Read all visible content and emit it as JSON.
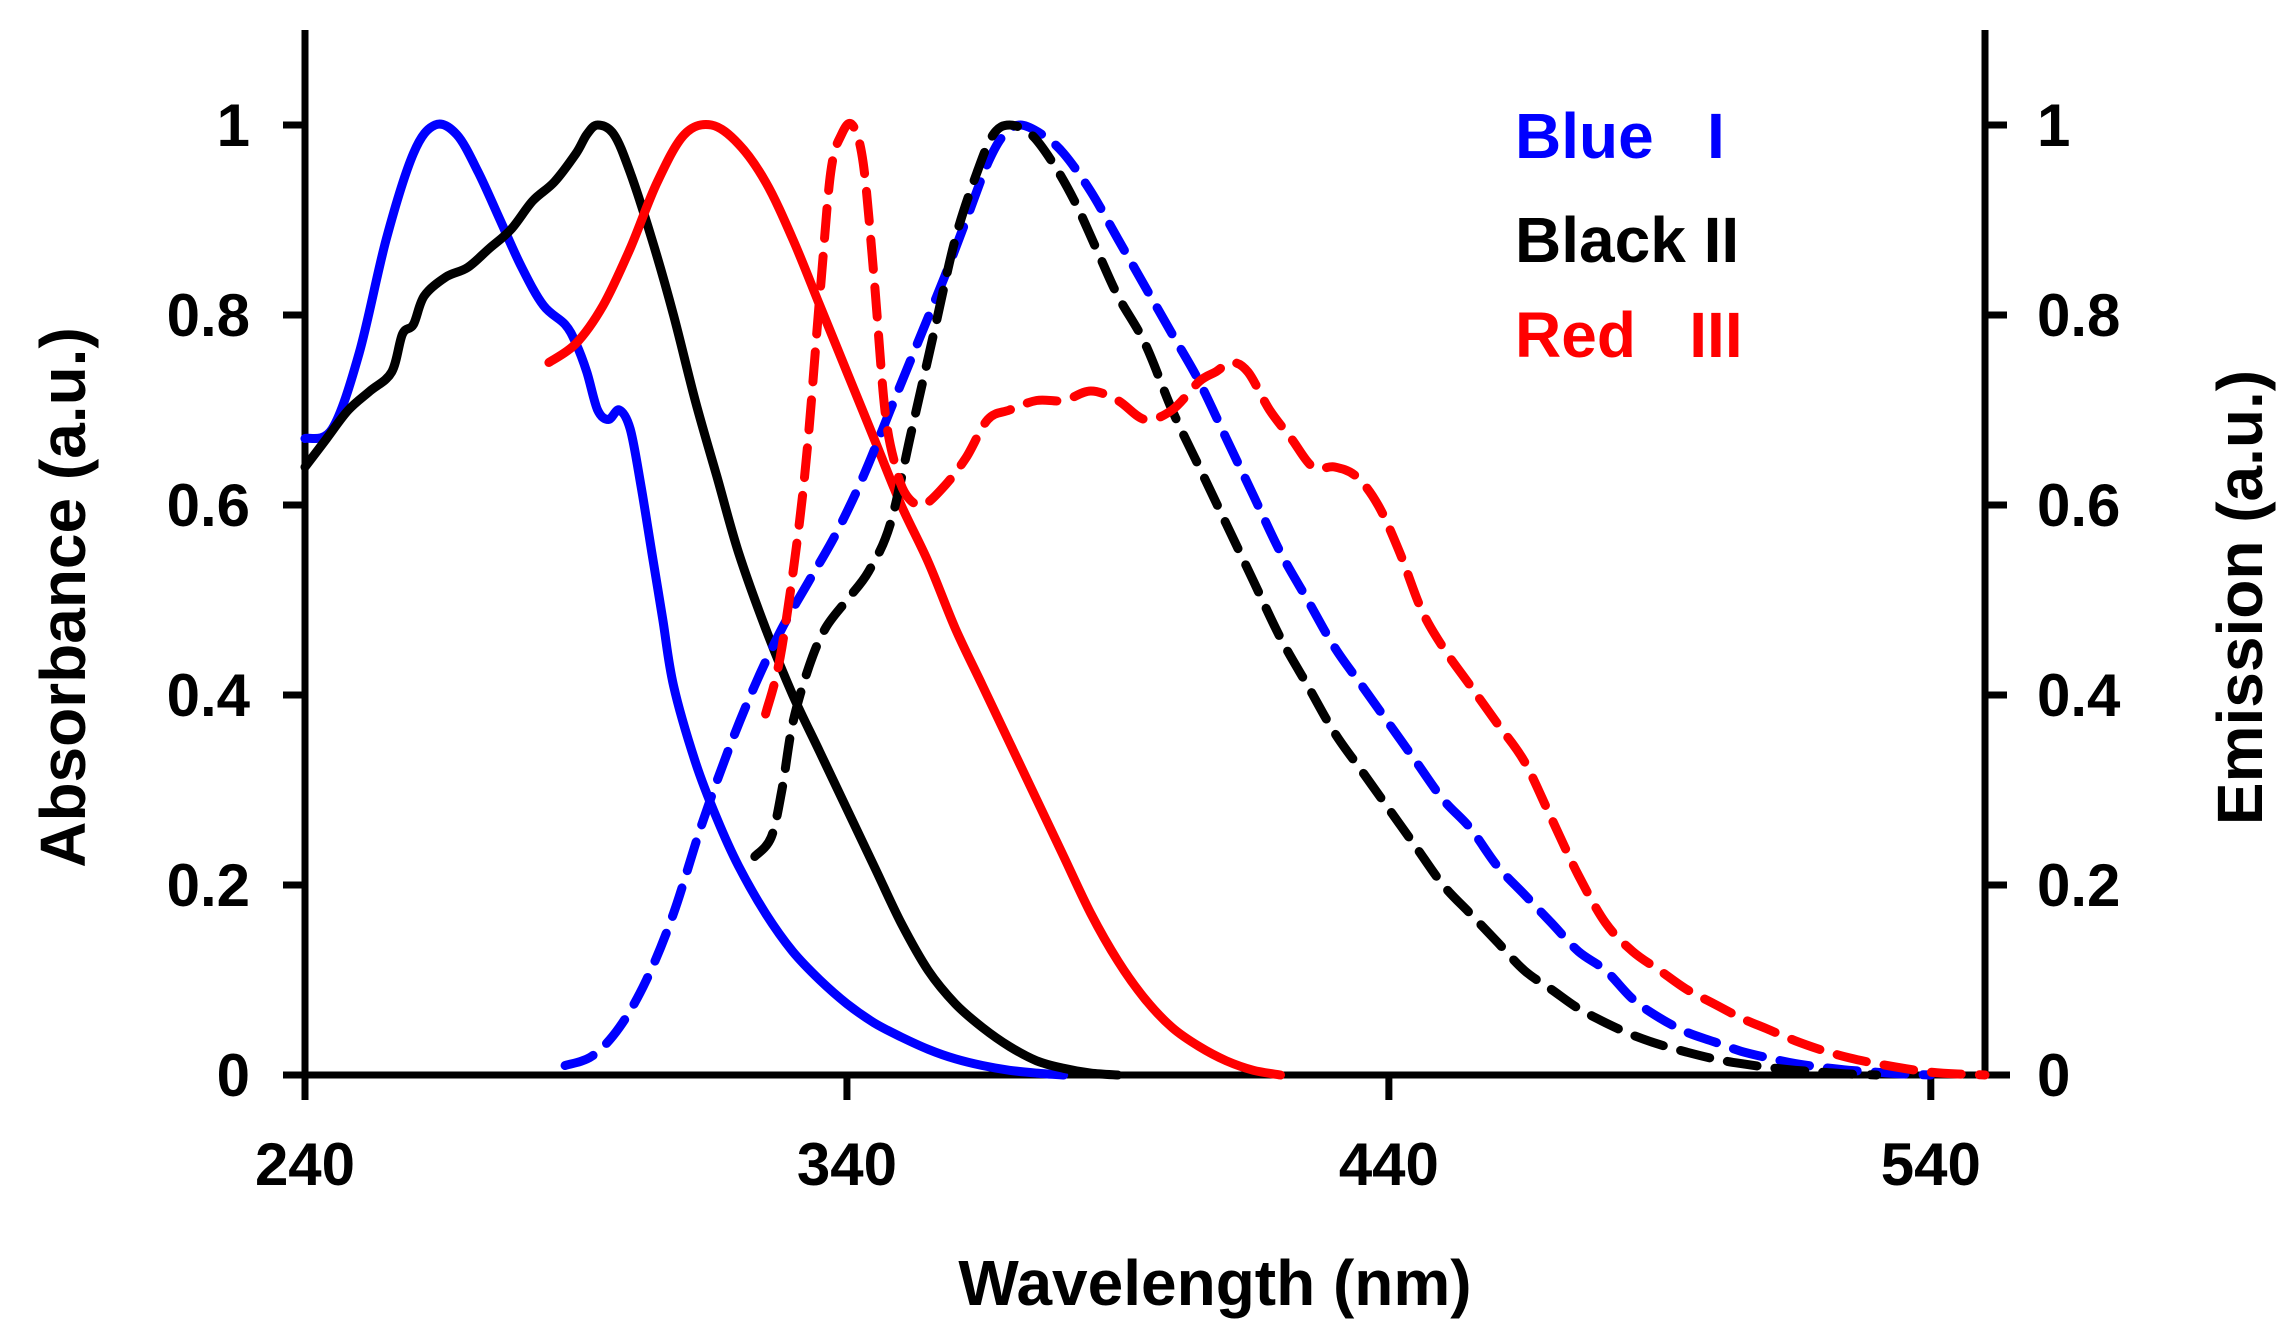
{
  "chart_data": {
    "type": "line",
    "title": "",
    "xlabel": "Wavelength (nm)",
    "ylabel": "Absorbance (a.u.)",
    "y2label": "Emission (a.u.)",
    "xlim": [
      240,
      550
    ],
    "ylim": [
      0,
      1.1
    ],
    "y2lim": [
      0,
      1.1
    ],
    "grid": false,
    "legend_position": "top-right",
    "xticks": [
      240,
      340,
      440,
      540
    ],
    "xtick_labels": [
      "240",
      "340",
      "440",
      "540"
    ],
    "yticks": [
      0,
      0.2,
      0.4,
      0.6,
      0.8,
      1
    ],
    "ytick_labels": [
      "0",
      "0.2",
      "0.4",
      "0.6",
      "0.8",
      "1"
    ],
    "y2tick_labels": [
      "0",
      "0.2",
      "0.4",
      "0.6",
      "0.8",
      "1"
    ],
    "legend": [
      {
        "label": "Blue   I",
        "color": "#0000ff"
      },
      {
        "label": "Black II",
        "color": "#000000"
      },
      {
        "label": "Red   III",
        "color": "#ff0000"
      }
    ],
    "series": [
      {
        "name": "Blue I absorbance",
        "color": "#0000ff",
        "dash": false,
        "axis": "left",
        "points": [
          [
            240,
            0.67
          ],
          [
            245,
            0.68
          ],
          [
            250,
            0.76
          ],
          [
            255,
            0.88
          ],
          [
            260,
            0.97
          ],
          [
            264,
            1.0
          ],
          [
            268,
            0.99
          ],
          [
            272,
            0.95
          ],
          [
            276,
            0.9
          ],
          [
            280,
            0.85
          ],
          [
            284,
            0.81
          ],
          [
            288,
            0.79
          ],
          [
            290,
            0.77
          ],
          [
            292,
            0.74
          ],
          [
            294,
            0.7
          ],
          [
            296,
            0.69
          ],
          [
            298,
            0.7
          ],
          [
            300,
            0.68
          ],
          [
            302,
            0.62
          ],
          [
            304,
            0.55
          ],
          [
            306,
            0.48
          ],
          [
            308,
            0.41
          ],
          [
            312,
            0.33
          ],
          [
            316,
            0.27
          ],
          [
            320,
            0.22
          ],
          [
            325,
            0.17
          ],
          [
            330,
            0.13
          ],
          [
            335,
            0.1
          ],
          [
            340,
            0.075
          ],
          [
            345,
            0.055
          ],
          [
            350,
            0.04
          ],
          [
            355,
            0.027
          ],
          [
            360,
            0.017
          ],
          [
            365,
            0.01
          ],
          [
            370,
            0.005
          ],
          [
            375,
            0.002
          ],
          [
            380,
            0.0
          ]
        ]
      },
      {
        "name": "Black II absorbance",
        "color": "#000000",
        "dash": false,
        "axis": "left",
        "points": [
          [
            240,
            0.64
          ],
          [
            244,
            0.67
          ],
          [
            248,
            0.7
          ],
          [
            252,
            0.72
          ],
          [
            256,
            0.74
          ],
          [
            258,
            0.78
          ],
          [
            260,
            0.79
          ],
          [
            262,
            0.82
          ],
          [
            266,
            0.84
          ],
          [
            270,
            0.85
          ],
          [
            274,
            0.87
          ],
          [
            278,
            0.89
          ],
          [
            282,
            0.92
          ],
          [
            286,
            0.94
          ],
          [
            290,
            0.97
          ],
          [
            292,
            0.99
          ],
          [
            294,
            1.0
          ],
          [
            297,
            0.99
          ],
          [
            300,
            0.95
          ],
          [
            304,
            0.88
          ],
          [
            308,
            0.8
          ],
          [
            312,
            0.71
          ],
          [
            316,
            0.63
          ],
          [
            320,
            0.55
          ],
          [
            325,
            0.47
          ],
          [
            330,
            0.4
          ],
          [
            335,
            0.34
          ],
          [
            340,
            0.28
          ],
          [
            345,
            0.22
          ],
          [
            350,
            0.16
          ],
          [
            355,
            0.11
          ],
          [
            360,
            0.075
          ],
          [
            365,
            0.05
          ],
          [
            370,
            0.03
          ],
          [
            375,
            0.015
          ],
          [
            380,
            0.007
          ],
          [
            385,
            0.002
          ],
          [
            390,
            0.0
          ]
        ]
      },
      {
        "name": "Red III absorbance",
        "color": "#ff0000",
        "dash": false,
        "axis": "left",
        "points": [
          [
            285,
            0.75
          ],
          [
            290,
            0.77
          ],
          [
            295,
            0.81
          ],
          [
            300,
            0.87
          ],
          [
            305,
            0.94
          ],
          [
            310,
            0.99
          ],
          [
            315,
            1.0
          ],
          [
            320,
            0.98
          ],
          [
            325,
            0.94
          ],
          [
            330,
            0.88
          ],
          [
            335,
            0.81
          ],
          [
            340,
            0.74
          ],
          [
            345,
            0.67
          ],
          [
            350,
            0.6
          ],
          [
            355,
            0.54
          ],
          [
            360,
            0.47
          ],
          [
            365,
            0.41
          ],
          [
            370,
            0.35
          ],
          [
            375,
            0.29
          ],
          [
            380,
            0.23
          ],
          [
            385,
            0.17
          ],
          [
            390,
            0.12
          ],
          [
            395,
            0.08
          ],
          [
            400,
            0.05
          ],
          [
            405,
            0.03
          ],
          [
            410,
            0.015
          ],
          [
            415,
            0.005
          ],
          [
            420,
            0.0
          ]
        ]
      },
      {
        "name": "Blue I emission",
        "color": "#0000ff",
        "dash": true,
        "axis": "right",
        "points": [
          [
            288,
            0.01
          ],
          [
            293,
            0.02
          ],
          [
            298,
            0.05
          ],
          [
            303,
            0.1
          ],
          [
            308,
            0.17
          ],
          [
            313,
            0.26
          ],
          [
            318,
            0.34
          ],
          [
            323,
            0.41
          ],
          [
            328,
            0.47
          ],
          [
            333,
            0.52
          ],
          [
            338,
            0.57
          ],
          [
            343,
            0.63
          ],
          [
            348,
            0.7
          ],
          [
            353,
            0.77
          ],
          [
            358,
            0.84
          ],
          [
            362,
            0.9
          ],
          [
            366,
            0.96
          ],
          [
            369,
            0.99
          ],
          [
            372,
            1.0
          ],
          [
            376,
            0.99
          ],
          [
            380,
            0.97
          ],
          [
            385,
            0.93
          ],
          [
            390,
            0.88
          ],
          [
            395,
            0.83
          ],
          [
            400,
            0.78
          ],
          [
            405,
            0.73
          ],
          [
            410,
            0.67
          ],
          [
            415,
            0.61
          ],
          [
            420,
            0.55
          ],
          [
            425,
            0.5
          ],
          [
            430,
            0.45
          ],
          [
            435,
            0.41
          ],
          [
            440,
            0.37
          ],
          [
            445,
            0.33
          ],
          [
            450,
            0.29
          ],
          [
            455,
            0.26
          ],
          [
            460,
            0.22
          ],
          [
            465,
            0.19
          ],
          [
            470,
            0.16
          ],
          [
            475,
            0.13
          ],
          [
            480,
            0.11
          ],
          [
            485,
            0.08
          ],
          [
            490,
            0.06
          ],
          [
            495,
            0.045
          ],
          [
            500,
            0.035
          ],
          [
            505,
            0.025
          ],
          [
            510,
            0.018
          ],
          [
            515,
            0.012
          ],
          [
            520,
            0.008
          ],
          [
            525,
            0.005
          ],
          [
            530,
            0.003
          ],
          [
            535,
            0.001
          ],
          [
            540,
            0.0
          ]
        ]
      },
      {
        "name": "Black II emission",
        "color": "#000000",
        "dash": true,
        "axis": "right",
        "points": [
          [
            323,
            0.23
          ],
          [
            326,
            0.25
          ],
          [
            328,
            0.3
          ],
          [
            330,
            0.37
          ],
          [
            333,
            0.43
          ],
          [
            336,
            0.47
          ],
          [
            340,
            0.5
          ],
          [
            344,
            0.53
          ],
          [
            348,
            0.58
          ],
          [
            352,
            0.68
          ],
          [
            356,
            0.78
          ],
          [
            360,
            0.88
          ],
          [
            364,
            0.95
          ],
          [
            367,
            0.99
          ],
          [
            370,
            1.0
          ],
          [
            374,
            0.99
          ],
          [
            378,
            0.96
          ],
          [
            382,
            0.92
          ],
          [
            386,
            0.87
          ],
          [
            390,
            0.82
          ],
          [
            395,
            0.77
          ],
          [
            400,
            0.7
          ],
          [
            405,
            0.64
          ],
          [
            410,
            0.58
          ],
          [
            415,
            0.52
          ],
          [
            420,
            0.46
          ],
          [
            425,
            0.41
          ],
          [
            430,
            0.36
          ],
          [
            435,
            0.32
          ],
          [
            440,
            0.28
          ],
          [
            445,
            0.24
          ],
          [
            450,
            0.2
          ],
          [
            455,
            0.17
          ],
          [
            460,
            0.14
          ],
          [
            465,
            0.11
          ],
          [
            470,
            0.09
          ],
          [
            475,
            0.07
          ],
          [
            480,
            0.055
          ],
          [
            485,
            0.042
          ],
          [
            490,
            0.032
          ],
          [
            495,
            0.024
          ],
          [
            500,
            0.017
          ],
          [
            505,
            0.012
          ],
          [
            510,
            0.008
          ],
          [
            515,
            0.005
          ],
          [
            520,
            0.003
          ],
          [
            525,
            0.001
          ],
          [
            530,
            0.0
          ]
        ]
      },
      {
        "name": "Red III emission",
        "color": "#ff0000",
        "dash": true,
        "axis": "right",
        "points": [
          [
            325,
            0.38
          ],
          [
            328,
            0.45
          ],
          [
            332,
            0.62
          ],
          [
            335,
            0.82
          ],
          [
            337,
            0.95
          ],
          [
            339,
            0.99
          ],
          [
            341,
            1.0
          ],
          [
            343,
            0.96
          ],
          [
            345,
            0.84
          ],
          [
            347,
            0.7
          ],
          [
            349,
            0.64
          ],
          [
            351,
            0.61
          ],
          [
            354,
            0.6
          ],
          [
            358,
            0.62
          ],
          [
            362,
            0.65
          ],
          [
            366,
            0.69
          ],
          [
            370,
            0.7
          ],
          [
            375,
            0.71
          ],
          [
            380,
            0.71
          ],
          [
            385,
            0.72
          ],
          [
            390,
            0.71
          ],
          [
            395,
            0.69
          ],
          [
            400,
            0.7
          ],
          [
            405,
            0.73
          ],
          [
            408,
            0.74
          ],
          [
            411,
            0.75
          ],
          [
            414,
            0.74
          ],
          [
            418,
            0.7
          ],
          [
            422,
            0.67
          ],
          [
            426,
            0.64
          ],
          [
            430,
            0.64
          ],
          [
            434,
            0.63
          ],
          [
            438,
            0.6
          ],
          [
            442,
            0.55
          ],
          [
            446,
            0.49
          ],
          [
            450,
            0.45
          ],
          [
            455,
            0.41
          ],
          [
            460,
            0.37
          ],
          [
            465,
            0.33
          ],
          [
            470,
            0.27
          ],
          [
            475,
            0.21
          ],
          [
            480,
            0.16
          ],
          [
            485,
            0.13
          ],
          [
            490,
            0.11
          ],
          [
            495,
            0.09
          ],
          [
            500,
            0.075
          ],
          [
            505,
            0.06
          ],
          [
            510,
            0.048
          ],
          [
            515,
            0.036
          ],
          [
            520,
            0.026
          ],
          [
            525,
            0.018
          ],
          [
            530,
            0.012
          ],
          [
            535,
            0.007
          ],
          [
            540,
            0.003
          ],
          [
            545,
            0.001
          ],
          [
            550,
            0.0
          ]
        ]
      }
    ]
  }
}
